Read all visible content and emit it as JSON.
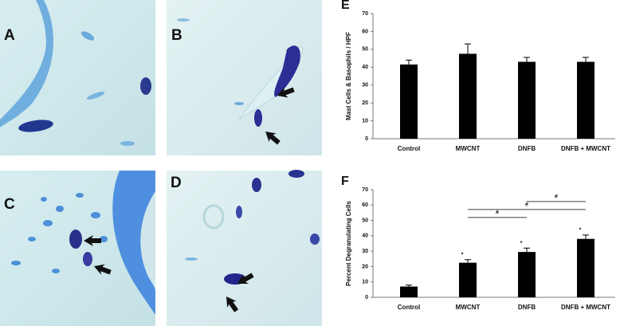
{
  "panels": [
    "A",
    "B",
    "C",
    "D"
  ],
  "chart_data": [
    {
      "type": "bar",
      "label": "E",
      "y_label": "Mast Cells & Basophils / HPF",
      "categories": [
        "Control",
        "MWCNT",
        "DNFB",
        "DNFB + MWCNT"
      ],
      "values": [
        41.5,
        47.5,
        43,
        43
      ],
      "errors": [
        2.5,
        5.5,
        2.5,
        2.5
      ],
      "color": "#000000",
      "ylim": [
        0,
        70
      ],
      "yticks": [
        0,
        10,
        20,
        30,
        40,
        50,
        60,
        70
      ]
    },
    {
      "type": "bar",
      "label": "F",
      "y_label": "Percent Degranulating Cells",
      "categories": [
        "Control",
        "MWCNT",
        "DNFB",
        "DNFB + MWCNT"
      ],
      "values": [
        7,
        22.5,
        29.5,
        38
      ],
      "errors": [
        1,
        2,
        2.5,
        2.5
      ],
      "color": "#000000",
      "markers": [
        null,
        "*",
        "*",
        "*"
      ],
      "brackets": [
        {
          "from": 1,
          "to": 2,
          "label": "#"
        },
        {
          "from": 1,
          "to": 3,
          "label": "#"
        },
        {
          "from": 2,
          "to": 3,
          "label": "#"
        }
      ],
      "ylim": [
        0,
        70
      ],
      "yticks": [
        0,
        10,
        20,
        30,
        40,
        50,
        60,
        70
      ]
    }
  ]
}
